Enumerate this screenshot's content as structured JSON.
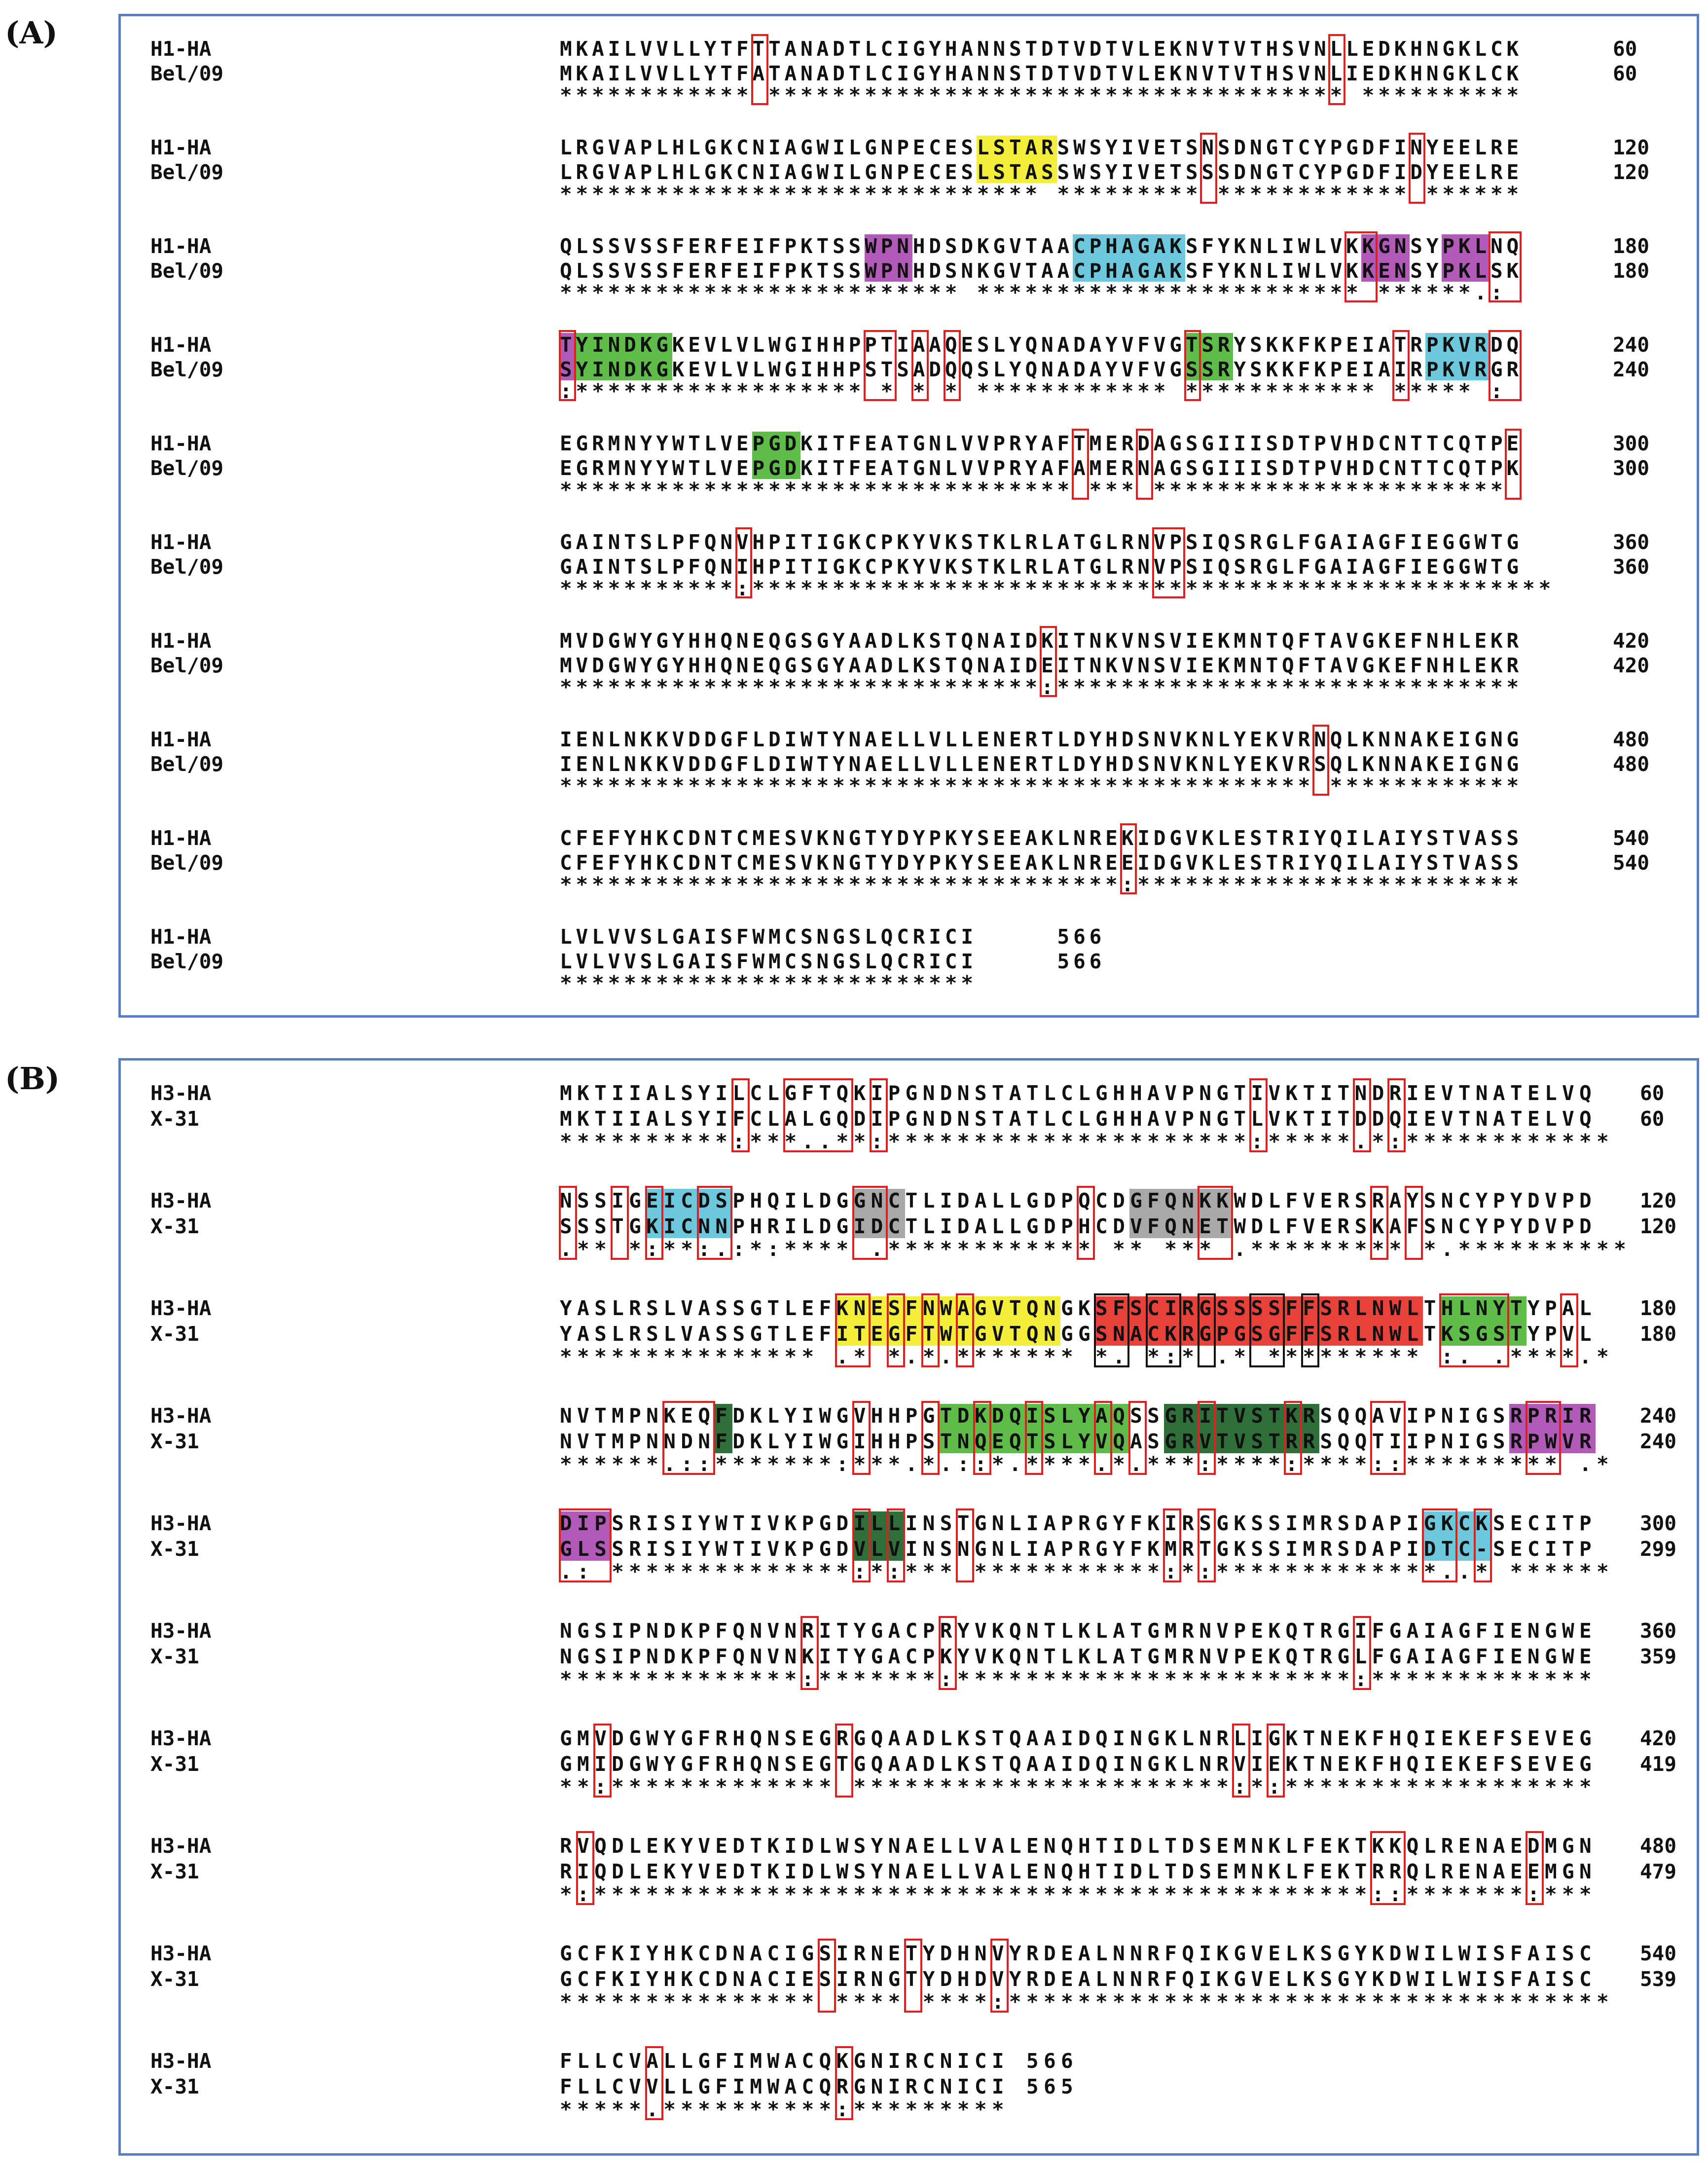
{
  "panels": [
    {
      "label": "(A)",
      "blocks": [
        {
          "names": [
            "H1-HA",
            "Bel/09"
          ],
          "seqs": [
            "MKAILVVLLYTFTTANADTLCIGYHANNSTDTVDTVLEKNVTVTHSVNLLEDKHNGKLCK",
            "MKAILVVLLYTFATANADTLCIGYHANNSTDTVDTVLEKNVTVTHSVNLIEDKHNGKLCK"
          ],
          "cons": "************ ************************************ **********",
          "nums": [
            "60",
            "60"
          ]
        },
        {
          "names": [
            "H1-HA",
            "Bel/09"
          ],
          "seqs": [
            "LRGVAPLHLGKCNIAGWILGNPECESLSTARSWSYIVETSNSDNGTCYPGDFINYEELRE",
            "LRGVAPLHLGKCNIAGWILGNPECESLSTASSWSYIVETSSSDNGTCYPGDFIDYEELRE"
          ],
          "cons": "****************************** ********* ************ ******",
          "nums": [
            "120",
            "120"
          ]
        },
        {
          "names": [
            "H1-HA",
            "Bel/09"
          ],
          "seqs": [
            "QLSSVSSFERFEIFPKTSSWPNHDSDKGVTAACPHAGAKSFYKNLIWLVKKGNSYPKLNQ",
            "QLSSVSSFERFEIFPKTSSWPNHDSNKGVTAACPHAGAKSFYKNLIWLVKKENSYPKLSK"
          ],
          "cons": "************************* ************************ ******.:",
          "nums": [
            "180",
            "180"
          ]
        },
        {
          "names": [
            "H1-HA",
            "Bel/09"
          ],
          "seqs": [
            "TYINDKGKEVLVLWGIHHPPTIAAQESLYQNADAYVFVGTSRYSKKFKPEIATRPKVRDQ",
            "SYINDKGKEVLVLWGIHHPSTSADQQSLYQNADAYVFVGSSRYSKKFKPEIAIRPKVRGR"
          ],
          "cons": ":****************** * * * ************ ************ ***** :",
          "nums": [
            "240",
            "240"
          ]
        },
        {
          "names": [
            "H1-HA",
            "Bel/09"
          ],
          "seqs": [
            "EGRMNYYWTLVEPGDKITFEATGNLVVPRYAFTMERDAGSGIIISDTPVHDCNTTCQTPE",
            "EGRMNYYWTLVEPGDKITFEATGNLVVPRYAFAMERNAGSGIIISDTPVHDCNTTCQTPK"
          ],
          "cons": "******************************** *** ********************** ",
          "nums": [
            "300",
            "300"
          ]
        },
        {
          "names": [
            "H1-HA",
            "Bel/09"
          ],
          "seqs": [
            "GAINTSLPFQNVHPITIGKCPKYVKSTKLRLATGLRNVPSIQSRGLFGAIAGFIEGGWTG",
            "GAINTSLPFQNIHPITIGKCPKYVKSTKLRLATGLRNVPSIQSRGLFGAIAGFIEGGWTG"
          ],
          "cons": "***********:**************************************************",
          "nums": [
            "360",
            "360"
          ]
        },
        {
          "names": [
            "H1-HA",
            "Bel/09"
          ],
          "seqs": [
            "MVDGWYGYHHQNEQGSGYAADLKSTQNAIDKITNKVNSVIEKMNTQFTAVGKEFNHLEKR",
            "MVDGWYGYHHQNEQGSGYAADLKSTQNAIDEITNKVNSVIEKMNTQFTAVGKEFNHLEKR"
          ],
          "cons": "******************************:*****************************",
          "nums": [
            "420",
            "420"
          ]
        },
        {
          "names": [
            "H1-HA",
            "Bel/09"
          ],
          "seqs": [
            "IENLNKKVDDGFLDIWTYNAELLVLLENERTLDYHDSNVKNLYEKVRNQLKNNAKEIGNG",
            "IENLNKKVDDGFLDIWTYNAELLVLLENERTLDYHDSNVKNLYEKVRSQLKNNAKEIGNG"
          ],
          "cons": "*********************************************** ************",
          "nums": [
            "480",
            "480"
          ]
        },
        {
          "names": [
            "H1-HA",
            "Bel/09"
          ],
          "seqs": [
            "CFEFYHKCDNTCMESVKNGTYDYPKYSEEAKLNREKIDGVKLESTRIYQILAIYSTVASS",
            "CFEFYHKCDNTCMESVKNGTYDYPKYSEEAKLNREEIDGVKLESTRIYQILAIYSTVASS"
          ],
          "cons": "***********************************:************************",
          "nums": [
            "540",
            "540"
          ]
        },
        {
          "names": [
            "H1-HA",
            "Bel/09"
          ],
          "seqs": [
            "LVLVVSLGAISFWMCSNGSLQCRICI     566",
            "LVLVVSLGAISFWMCSNGSLQCRICI     566"
          ],
          "cons": "**************************",
          "nums": [
            "",
            ""
          ]
        }
      ]
    },
    {
      "label": "(B)",
      "blocks": [
        {
          "names": [
            "H3-HA",
            "X-31"
          ],
          "seqs": [
            "MKTIIALSYILCLGFTQKIPGNDNSTATLCLGHHAVPNGTIVKTITNDRIEVTNATELVQ",
            "MKTIIALSYIFCLALGQDIPGNDNSTATLCLGHHAVPNGTLVKTITDDQIEVTNATELVQ"
          ],
          "cons": "**********:***..**:*********************:*****.*:************",
          "nums": [
            "60",
            "60"
          ]
        },
        {
          "names": [
            "H3-HA",
            "X-31"
          ],
          "seqs": [
            "NSSIGEICDSPHQILDGGNCTLIDALLGDPQCDGFQNKKWDLFVERSRAYSNCYPYDVPD",
            "SSSTGKICNNPHRILDGIDCTLIDALLGDPHCDVFQNETWDLFVERSKAFSNCYPYDVPD"
          ],
          "cons": ".** *:**:.:*:**** .************ ** *** .********* *.**********",
          "nums": [
            "120",
            "120"
          ]
        },
        {
          "names": [
            "H3-HA",
            "X-31"
          ],
          "seqs": [
            "YASLRSLVASSGTLEFKNESFNWAGVTQNGKSFSCIRGSSSSFFSRLNWLTHLNYTYPAL",
            "YASLRSLVASSGTLEFITEGFTWTGVTQNGGSNACKRGPGSGFFSRLNWLTKSGSTYPVL"
          ],
          "cons": "*************** .* *.*.******* *. *:* .* ********* :. .****.*",
          "nums": [
            "180",
            "180"
          ]
        },
        {
          "names": [
            "H3-HA",
            "X-31"
          ],
          "seqs": [
            "NVTMPNKEQFDKLYIWGVHHPGTDKDQISLYAQSSGRITVSTKRSQQAVIPNIGSRPRIR",
            "NVTMPNNDNFDKLYIWGIHHPSTNQEQTSLYVQASGRVTVSTRRSQQTIIPNIGSRPWVR"
          ],
          "cons": "******.::*******:***.*.::*.****.*.***:****:****::********* .*",
          "nums": [
            "240",
            "240"
          ]
        },
        {
          "names": [
            "H3-HA",
            "X-31"
          ],
          "seqs": [
            "DIPSRISIYWTIVKPGDILLINSTGNLIAPRGYFKIRSGKSSIMRSDAPIGKCKSECITP",
            "GLSSRISIYWTIVKPGDVLVINSNGNLIAPRGYFKMRTGKSSIMRSDAPIDTC-SECITP"
          ],
          "cons": ".: **************:*:*** ***********:*:*************..* ******",
          "nums": [
            "300",
            "299"
          ]
        },
        {
          "names": [
            "H3-HA",
            "X-31"
          ],
          "seqs": [
            "NGSIPNDKPFQNVNRITYGACPRYVKQNTLKLATGMRNVPEKQTRGIFGAIAGFIENGWE",
            "NGSIPNDKPFQNVNKITYGACPKYVKQNTLKLATGMRNVPEKQTRGLFGAIAGFIENGWE"
          ],
          "cons": "**************:*******:***********************:*************",
          "nums": [
            "360",
            "359"
          ]
        },
        {
          "names": [
            "H3-HA",
            "X-31"
          ],
          "seqs": [
            "GMVDGWYGFRHQNSEGRGQAADLKSTQAAIDQINGKLNRLIGKTNEKFHQIEKEFSEVEG",
            "GMIDGWYGFRHQNSEGTGQAADLKSTQAAIDQINGKLNRVIEKTNEKFHQIEKEFSEVEG"
          ],
          "cons": "**:************* **********************:*:******************",
          "nums": [
            "420",
            "419"
          ]
        },
        {
          "names": [
            "H3-HA",
            "X-31"
          ],
          "seqs": [
            "RVQDLEKYVEDTKIDLWSYNAELLVALENQHTIDLTDSEMNKLFEKTKKQLRENAEDMGN",
            "RIQDLEKYVEDTKIDLWSYNAELLVALENQHTIDLTDSEMNKLFEKTRRQLRENAEEMGN"
          ],
          "cons": "*:*********************************************::*******:***",
          "nums": [
            "480",
            "479"
          ]
        },
        {
          "names": [
            "H3-HA",
            "X-31"
          ],
          "seqs": [
            "GCFKIYHKCDNACIGSIRNETYDHNVYRDEALNNRFQIKGVELKSGYKDWILWISFAISC",
            "GCFKIYHKCDNACIESIRNGTYDHDVYRDEALNNRFQIKGVELKSGYKDWILWISFAISC"
          ],
          "cons": "*************** **** ****:***********************************",
          "nums": [
            "540",
            "539"
          ]
        },
        {
          "names": [
            "H3-HA",
            "X-31"
          ],
          "seqs": [
            "FLLCVALLGFIMWACQKGNIRCNICI 566",
            "FLLCVVLLGFIMWACQRGNIRCNICI 565"
          ],
          "cons": "*****.**********:*********",
          "nums": [
            "",
            ""
          ]
        }
      ]
    }
  ],
  "colors": {
    "frame": "#5b7fbe",
    "box": "#e02020",
    "box_black": "#111111",
    "yellow": "#f2ee3a",
    "magenta": "#b25ab7",
    "cyan": "#6cc9dd",
    "green": "#5dbd48",
    "dark_green": "#2f6f3a",
    "grey": "#a8a8a8",
    "red": "#e8413a"
  }
}
